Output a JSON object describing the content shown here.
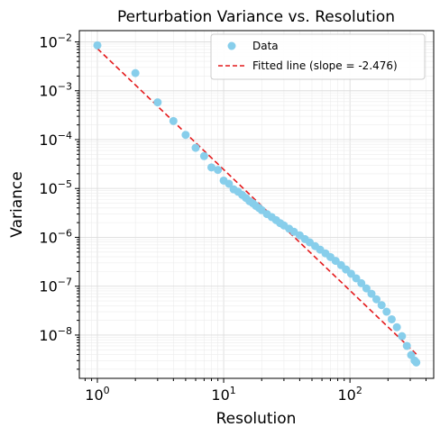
{
  "chart_data": {
    "type": "scatter",
    "title": "Perturbation Variance vs. Resolution",
    "xlabel": "Resolution",
    "ylabel": "Variance",
    "x_scale": "log",
    "y_scale": "log",
    "xlim": [
      0.72,
      460
    ],
    "ylim": [
      1.3e-09,
      0.017
    ],
    "grid": true,
    "legend_position": "top-right",
    "colors": {
      "data": "#87ceeb",
      "fit": "#e41a1c"
    },
    "x_ticks": [
      {
        "base": "10",
        "exp": "0",
        "value": 1
      },
      {
        "base": "10",
        "exp": "1",
        "value": 10
      },
      {
        "base": "10",
        "exp": "2",
        "value": 100
      }
    ],
    "y_ticks": [
      {
        "base": "10",
        "exp": "−8",
        "value": 1e-08
      },
      {
        "base": "10",
        "exp": "−7",
        "value": 1e-07
      },
      {
        "base": "10",
        "exp": "−6",
        "value": 1e-06
      },
      {
        "base": "10",
        "exp": "−5",
        "value": 1e-05
      },
      {
        "base": "10",
        "exp": "−4",
        "value": 0.0001
      },
      {
        "base": "10",
        "exp": "−3",
        "value": 0.001
      },
      {
        "base": "10",
        "exp": "−2",
        "value": 0.01
      }
    ],
    "series": [
      {
        "name": "Data",
        "kind": "points",
        "points": [
          [
            1,
            0.0085
          ],
          [
            2,
            0.0023
          ],
          [
            3,
            0.00058
          ],
          [
            4,
            0.00024
          ],
          [
            5,
            0.000125
          ],
          [
            6,
            6.8e-05
          ],
          [
            7,
            4.6e-05
          ],
          [
            8,
            2.7e-05
          ],
          [
            9,
            2.4e-05
          ],
          [
            10,
            1.45e-05
          ],
          [
            11,
            1.25e-05
          ],
          [
            12,
            9.6e-06
          ],
          [
            13,
            8.6e-06
          ],
          [
            14,
            7.4e-06
          ],
          [
            15,
            6.4e-06
          ],
          [
            16,
            5.5e-06
          ],
          [
            17,
            5e-06
          ],
          [
            18,
            4.4e-06
          ],
          [
            19,
            4e-06
          ],
          [
            20,
            3.6e-06
          ],
          [
            22,
            3e-06
          ],
          [
            24,
            2.6e-06
          ],
          [
            26,
            2.25e-06
          ],
          [
            28,
            1.95e-06
          ],
          [
            30,
            1.75e-06
          ],
          [
            33,
            1.5e-06
          ],
          [
            36,
            1.3e-06
          ],
          [
            40,
            1.1e-06
          ],
          [
            44,
            9.2e-07
          ],
          [
            48,
            7.9e-07
          ],
          [
            53,
            6.6e-07
          ],
          [
            58,
            5.6e-07
          ],
          [
            64,
            4.7e-07
          ],
          [
            70,
            3.95e-07
          ],
          [
            77,
            3.3e-07
          ],
          [
            85,
            2.7e-07
          ],
          [
            93,
            2.2e-07
          ],
          [
            102,
            1.8e-07
          ],
          [
            112,
            1.45e-07
          ],
          [
            123,
            1.15e-07
          ],
          [
            135,
            9e-08
          ],
          [
            148,
            7e-08
          ],
          [
            162,
            5.4e-08
          ],
          [
            178,
            4.1e-08
          ],
          [
            195,
            3e-08
          ],
          [
            214,
            2.1e-08
          ],
          [
            235,
            1.45e-08
          ],
          [
            258,
            9.5e-09
          ],
          [
            282,
            6e-09
          ],
          [
            305,
            3.9e-09
          ],
          [
            325,
            3e-09
          ],
          [
            335,
            2.75e-09
          ]
        ]
      },
      {
        "name": "Fitted line (slope = -2.476)",
        "kind": "line",
        "slope": -2.476,
        "intercept_at_x1": 0.0073,
        "x_range": [
          1,
          335
        ]
      }
    ]
  }
}
